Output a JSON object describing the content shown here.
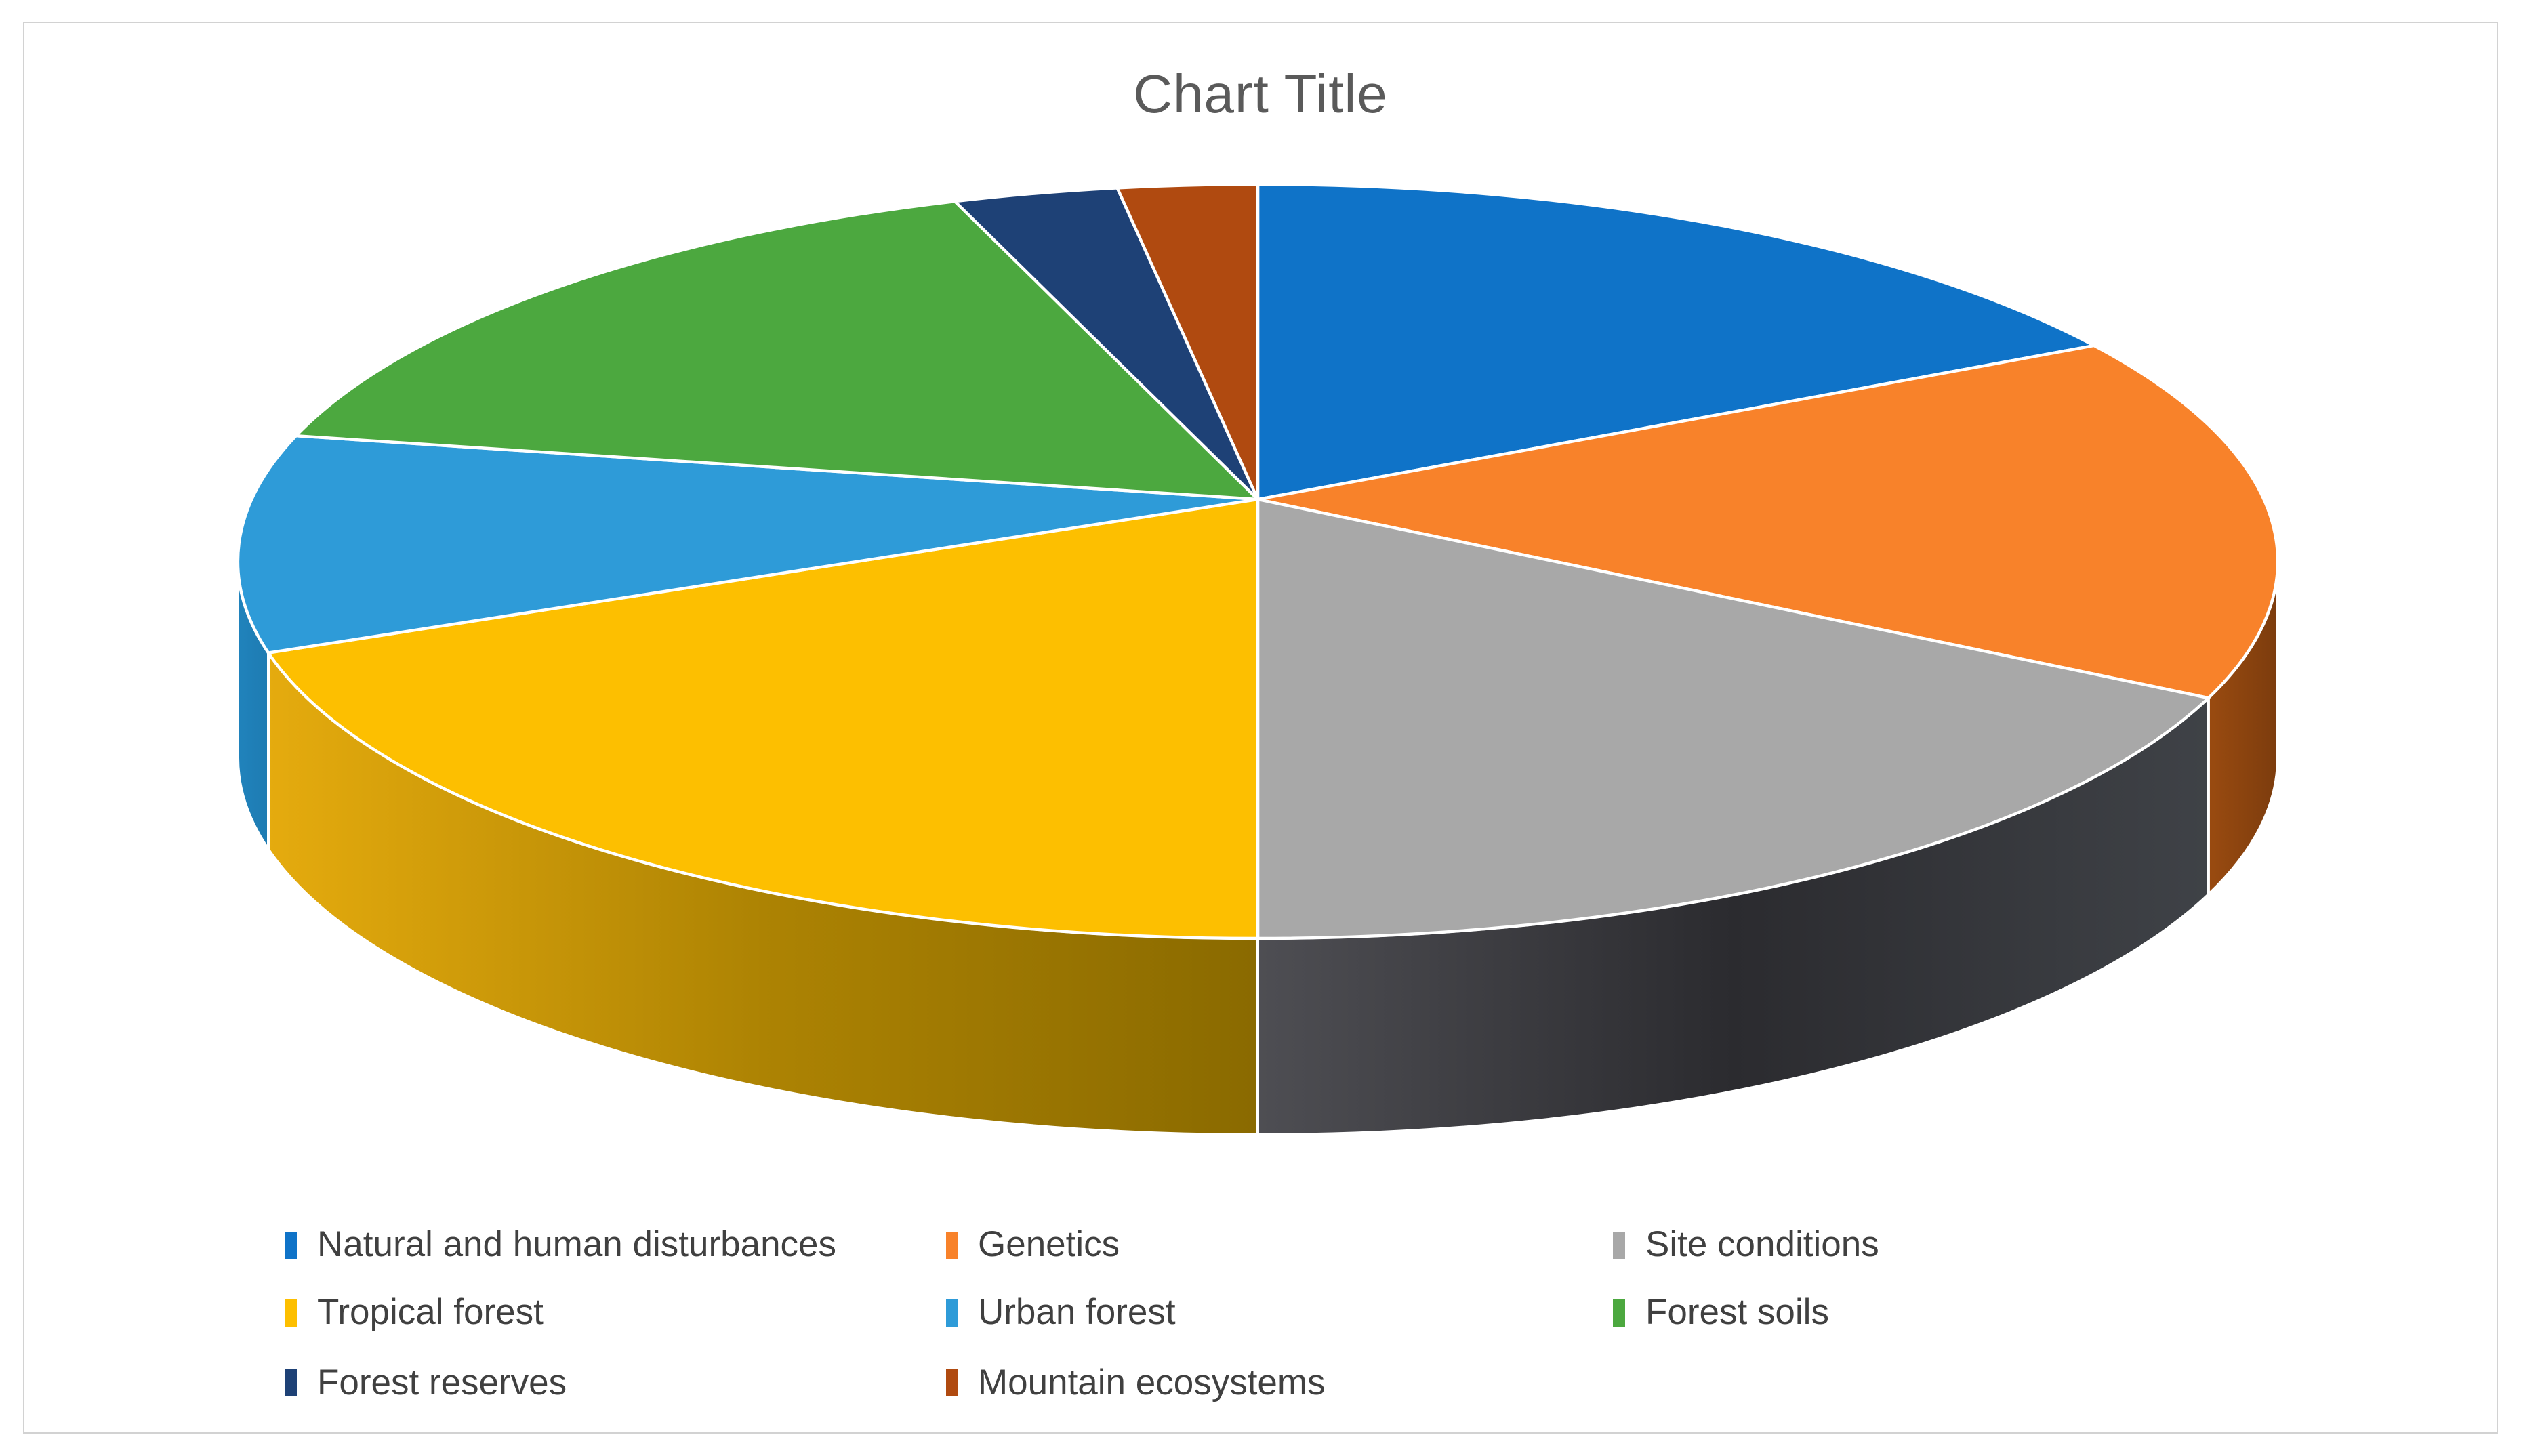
{
  "window": {
    "background": "#FFFFFF",
    "canvas_border_color": "#D2D2D2"
  },
  "title": {
    "text": "Chart Title",
    "color": "#5A5A5A"
  },
  "chart_data": {
    "type": "pie",
    "style": "3d-perspective",
    "title": "Chart Title",
    "categories": [
      "Natural and human disturbances",
      "Genetics",
      "Site conditions",
      "Tropical forest",
      "Urban forest",
      "Forest soils",
      "Forest reserves",
      "Mountain ecosystems"
    ],
    "values": [
      15.3,
      15.6,
      19.1,
      21.1,
      9.3,
      14.8,
      2.6,
      2.2
    ],
    "value_unit": "percent, estimated from slice angles (no data labels shown in chart)",
    "colors": [
      "#0F73C8",
      "#F8822A",
      "#A8A8A8",
      "#FDBF00",
      "#2E9BD8",
      "#4CA83F",
      "#1E4176",
      "#B04A10"
    ],
    "side_wall_colors": [
      null,
      [
        "#9A4B10",
        "#7C3C0D"
      ],
      [
        "#4E4E53",
        "#2B2B2F",
        "#3F4247"
      ],
      [
        "#E5AB0E",
        "#AD8303",
        "#8A6A00"
      ],
      [
        "#2083BC",
        "#1E7BB2"
      ],
      null,
      null,
      null
    ],
    "start_angle_deg": 0,
    "direction": "clockwise",
    "grid": false,
    "legend_position": "bottom",
    "slice_border_color": "#FFFFFF"
  },
  "legend": {
    "text_color": "#404040",
    "items": [
      {
        "label": "Natural and human disturbances",
        "color": "#0F73C8"
      },
      {
        "label": "Genetics",
        "color": "#F8822A"
      },
      {
        "label": "Site conditions",
        "color": "#A8A8A8"
      },
      {
        "label": "Tropical forest",
        "color": "#FDBF00"
      },
      {
        "label": "Urban forest",
        "color": "#2E9BD8"
      },
      {
        "label": "Forest soils",
        "color": "#4CA83F"
      },
      {
        "label": "Forest reserves",
        "color": "#1E4176"
      },
      {
        "label": "Mountain ecosystems",
        "color": "#B04A10"
      }
    ]
  }
}
